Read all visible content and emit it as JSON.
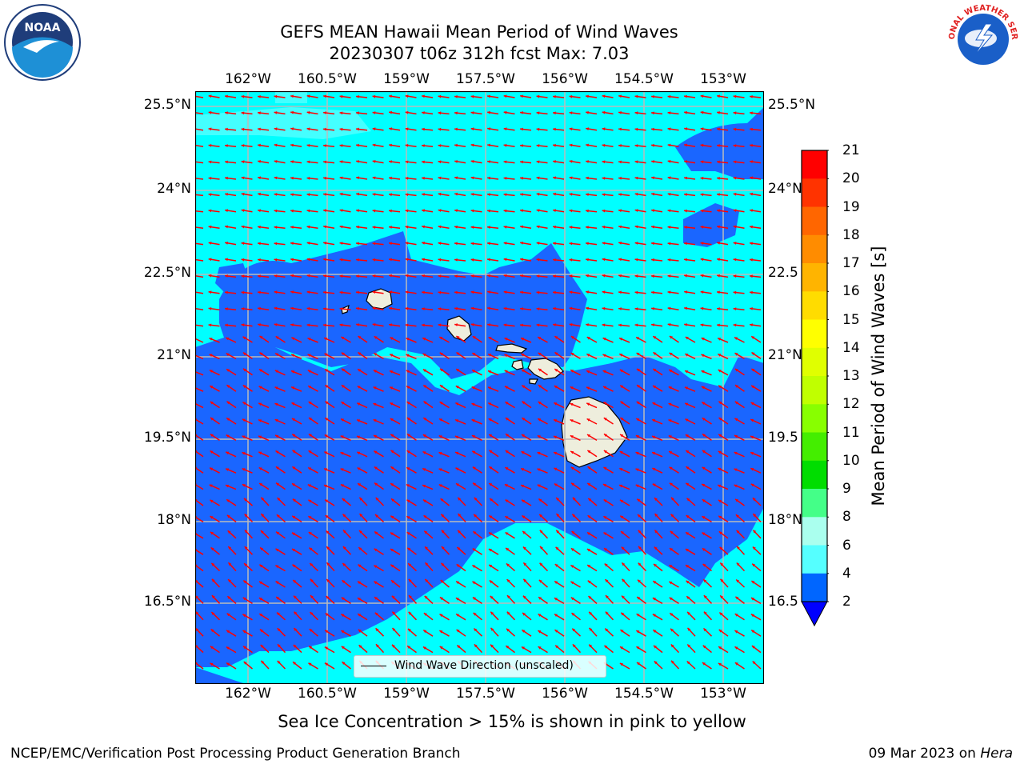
{
  "title_line1": "GEFS MEAN Hawaii Mean Period of Wind Waves",
  "title_line2": "20230307 t06z 312h fcst   Max: 7.03",
  "lon_ticks": [
    "162°W",
    "160.5°W",
    "159°W",
    "157.5°W",
    "156°W",
    "154.5°W",
    "153°W"
  ],
  "lat_ticks": [
    "25.5°N",
    "24°N",
    "22.5°N",
    "21°N",
    "19.5°N",
    "18°N",
    "16.5°N"
  ],
  "lat_ticks_right": [
    "25.5°N",
    "24°N",
    "22.5",
    "21°N",
    "19.5",
    "18°N",
    "16.5"
  ],
  "colorbar": {
    "title": "Mean Period of Wind Waves [s]",
    "labels": [
      "21",
      "20",
      "19",
      "18",
      "17",
      "16",
      "15",
      "14",
      "13",
      "12",
      "11",
      "10",
      "9",
      "8",
      "6",
      "4",
      "2"
    ],
    "colors": [
      "#ff0000",
      "#ff3300",
      "#ff6600",
      "#ff8c00",
      "#ffb400",
      "#ffdc00",
      "#ffff00",
      "#e0ff00",
      "#c0ff00",
      "#88ff00",
      "#44ee00",
      "#00dd00",
      "#00ee55",
      "#55ff99",
      "#aaffee",
      "#55ffff",
      "#00ffff",
      "#00ffff",
      "#0066ff",
      "#0000ff"
    ]
  },
  "legend_label": "Wind Wave Direction (unscaled)",
  "bottom_note": "Sea Ice Concentration > 15% is shown in pink to yellow",
  "footer_left": "NCEP/EMC/Verification Post Processing Product Generation Branch",
  "footer_date": "09 Mar 2023 on ",
  "footer_machine": "Hera",
  "logos": {
    "left": "NOAA",
    "right": "NATIONAL WEATHER SERVICE"
  },
  "map_colors": {
    "ocean_light": "#00ffff",
    "ocean_dark": "#1a66ff",
    "land": "#eeeedd",
    "arrow": "#ff0000",
    "grid": "#bbbbbb"
  }
}
